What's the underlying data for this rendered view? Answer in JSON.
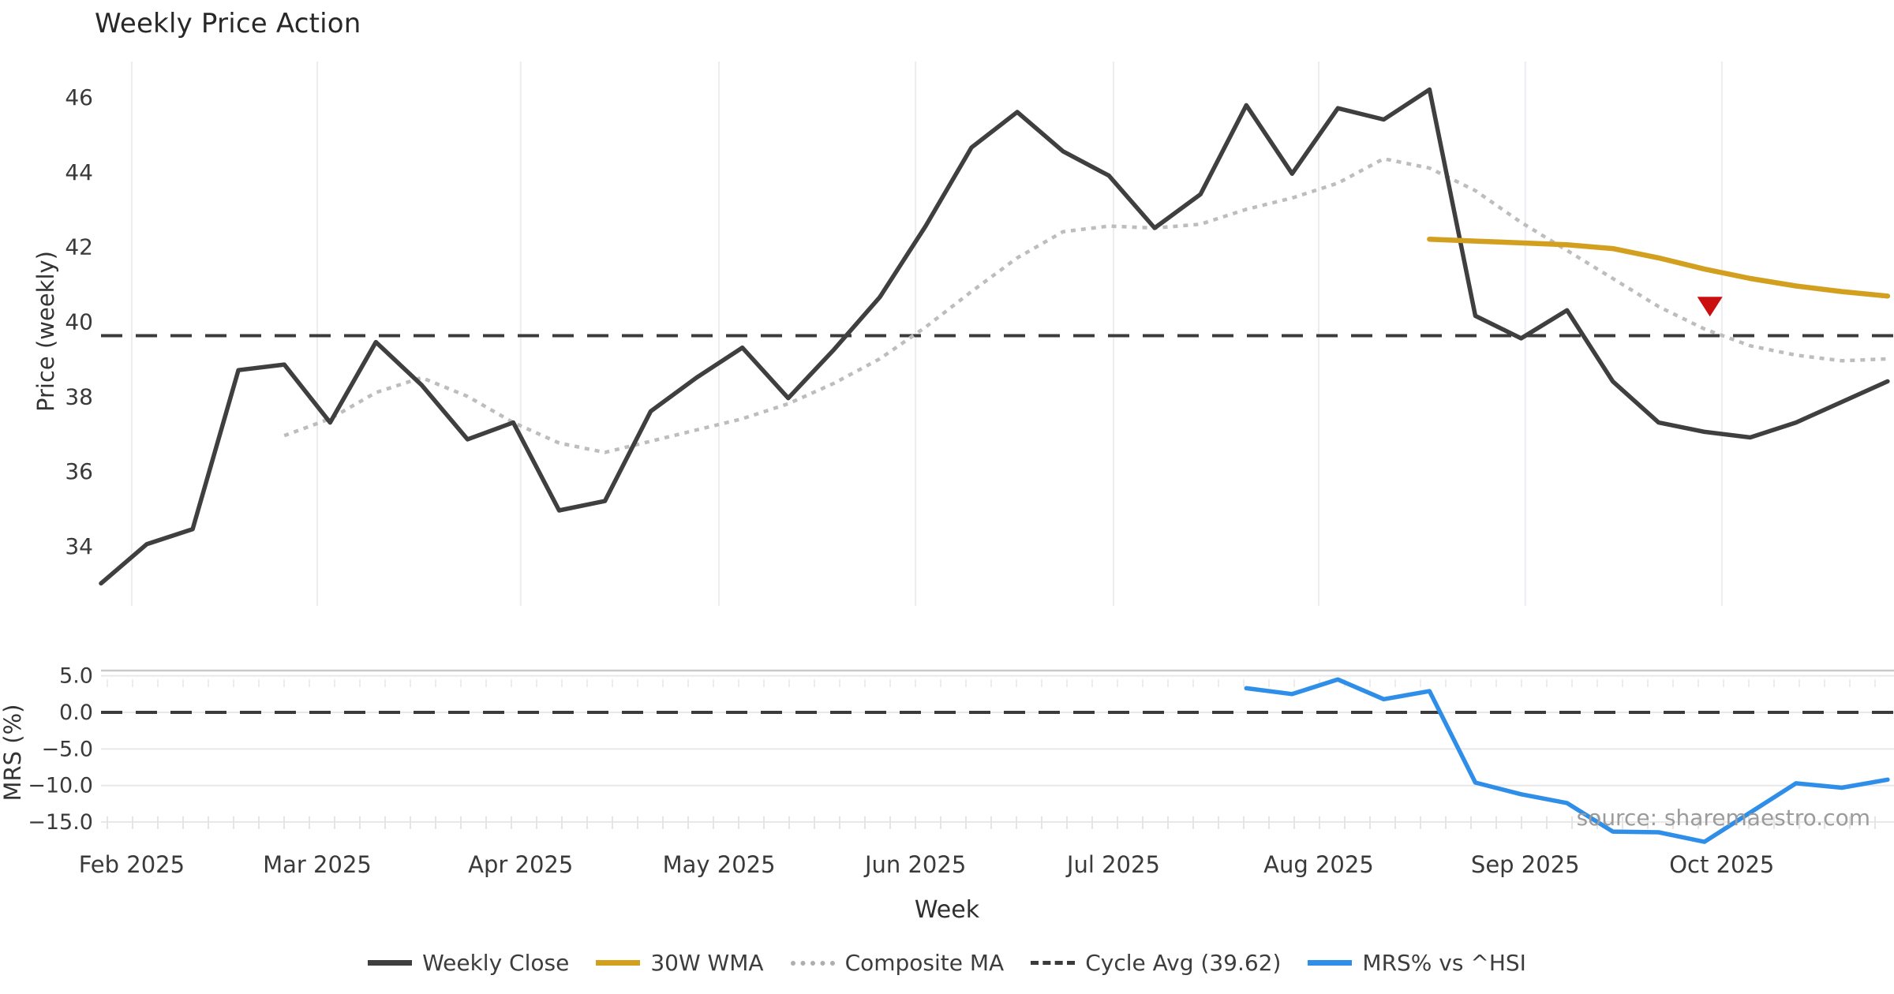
{
  "source_note": "source: sharemaestro.com",
  "legend": {
    "items": [
      {
        "label": "Weekly Close",
        "color": "#3f3f3f",
        "style": "solid"
      },
      {
        "label": "30W WMA",
        "color": "#d2a01e",
        "style": "solid"
      },
      {
        "label": "Composite MA",
        "color": "#aeaeae",
        "style": "dotted"
      },
      {
        "label": "Cycle Avg (39.62)",
        "color": "#3b3b3b",
        "style": "dashed"
      },
      {
        "label": "MRS% vs ^HSI",
        "color": "#2e8ee8",
        "style": "solid"
      }
    ]
  },
  "chart_data": [
    {
      "type": "line",
      "title": "Weekly Price Action",
      "ylabel": "Price (weekly)",
      "ylim": [
        32.4,
        46.95
      ],
      "grid": "vertical-months-only",
      "yticks": [
        46,
        44,
        42,
        40,
        38,
        36,
        34
      ],
      "months": [
        {
          "label": "Feb 2025",
          "week": 0.67
        },
        {
          "label": "Mar 2025",
          "week": 4.72
        },
        {
          "label": "Apr 2025",
          "week": 9.16
        },
        {
          "label": "May 2025",
          "week": 13.49
        },
        {
          "label": "Jun 2025",
          "week": 17.78
        },
        {
          "label": "Jul 2025",
          "week": 22.1
        },
        {
          "label": "Aug 2025",
          "week": 26.58
        },
        {
          "label": "Sep 2025",
          "week": 31.09
        },
        {
          "label": "Oct 2025",
          "week": 35.38
        }
      ],
      "series": [
        {
          "name": "Weekly Close",
          "color": "#3f3f3f",
          "style": "solid",
          "width": 5.5,
          "start_week": 0,
          "values": [
            33.0,
            34.05,
            34.45,
            38.7,
            38.85,
            37.3,
            39.45,
            38.3,
            36.85,
            37.3,
            34.95,
            35.2,
            37.6,
            38.5,
            39.3,
            37.95,
            39.25,
            40.65,
            42.55,
            44.65,
            45.6,
            44.55,
            43.9,
            42.5,
            43.4,
            45.78,
            43.95,
            45.7,
            45.4,
            46.2,
            40.15,
            39.55,
            40.3,
            38.4,
            37.3,
            37.05,
            36.9,
            37.3,
            37.85,
            38.4
          ]
        },
        {
          "name": "30W WMA",
          "color": "#d2a01e",
          "style": "solid",
          "width": 6.5,
          "start_week": 29,
          "values": [
            42.2,
            42.15,
            42.1,
            42.05,
            41.95,
            41.7,
            41.4,
            41.15,
            40.95,
            40.8,
            40.68
          ]
        },
        {
          "name": "Composite MA",
          "color": "#bdbdbd",
          "style": "dotted",
          "width": 4.5,
          "start_week": 4,
          "values": [
            36.95,
            37.4,
            38.1,
            38.5,
            38.0,
            37.3,
            36.75,
            36.5,
            36.8,
            37.1,
            37.4,
            37.8,
            38.35,
            39.0,
            39.85,
            40.8,
            41.7,
            42.4,
            42.55,
            42.5,
            42.6,
            43.0,
            43.3,
            43.7,
            44.35,
            44.1,
            43.5,
            42.65,
            41.9,
            41.15,
            40.4,
            39.8,
            39.35,
            39.1,
            38.95,
            39.0
          ]
        },
        {
          "name": "Cycle Avg",
          "color": "#3b3b3b",
          "style": "dashed",
          "width": 4,
          "hline": 39.62
        }
      ],
      "marker": {
        "type": "triangle-down",
        "color": "#c90f0f",
        "week": 35.12,
        "value": 40.3
      }
    },
    {
      "type": "line",
      "ylabel": "MRS (%)",
      "xlabel": "Week",
      "ylim": [
        -18.7,
        5.8
      ],
      "grid": "horizontal",
      "yticks": [
        "5.0",
        "0.0",
        "−5.0",
        "−10.0",
        "−15.0"
      ],
      "ytick_values": [
        5,
        0,
        -5,
        -10,
        -15
      ],
      "zero_line_dashed": true,
      "series": [
        {
          "name": "MRS% vs ^HSI",
          "color": "#2e8ee8",
          "style": "solid",
          "width": 5.5,
          "start_week": 25,
          "values": [
            3.3,
            2.5,
            4.5,
            1.8,
            2.9,
            -9.6,
            -11.2,
            -12.4,
            -16.3,
            -16.4,
            -17.7,
            -13.7,
            -9.7,
            -10.3,
            -9.2
          ]
        }
      ]
    }
  ]
}
